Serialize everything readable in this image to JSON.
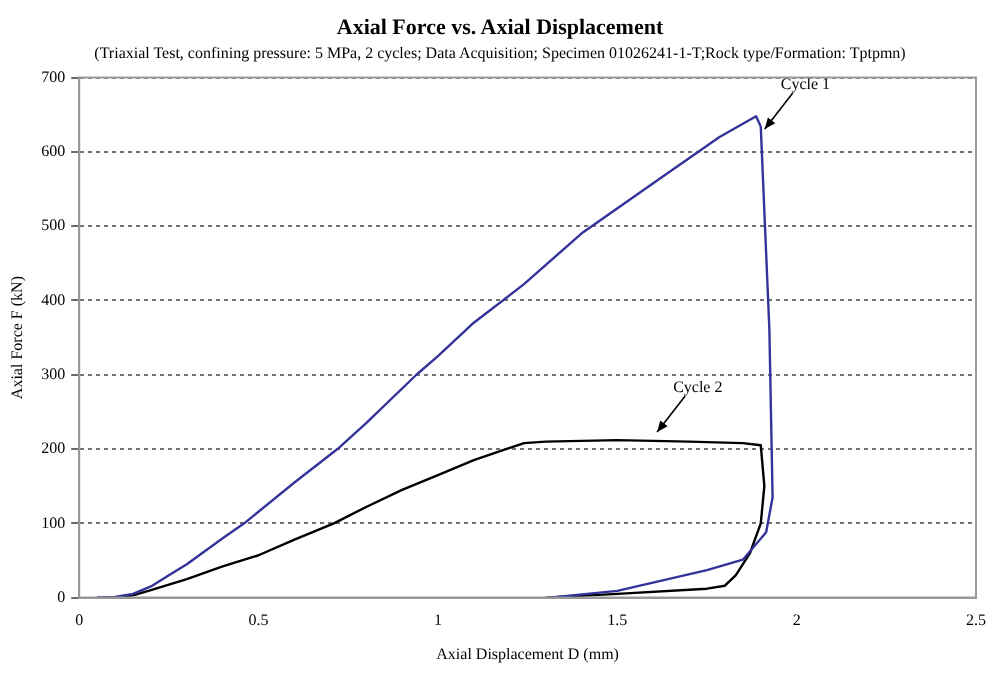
{
  "chart_data": {
    "type": "line",
    "title": "Axial Force vs. Axial Displacement",
    "subtitle": "(Triaxial Test, confining pressure: 5 MPa, 2 cycles; Data Acquisition; Specimen 01026241-1-T;Rock type/Formation: Tptpmn)",
    "xlabel": "Axial Displacement D (mm)",
    "ylabel": "Axial Force F (kN)",
    "series": [
      {
        "color": "#333399",
        "x": [
          0.05,
          0.1,
          0.15,
          0.2,
          0.25,
          0.3,
          0.4,
          0.46,
          0.6,
          0.72,
          0.8,
          0.94,
          1.0,
          1.1,
          1.24,
          1.4,
          1.63,
          1.785,
          1.887,
          1.9,
          1.924,
          1.933,
          1.915,
          1.85,
          1.75,
          1.5,
          1.31
        ],
        "values": [
          0,
          1,
          5,
          15,
          30,
          45,
          80,
          100,
          155,
          200,
          235,
          300,
          325,
          370,
          422,
          490,
          568,
          620,
          648,
          634,
          361,
          135,
          88,
          51,
          37,
          9,
          0
        ]
      },
      {
        "color": "#000000",
        "x": [
          0.05,
          0.1,
          0.15,
          0.2,
          0.3,
          0.4,
          0.5,
          0.6,
          0.71,
          0.8,
          0.9,
          1.0,
          1.1,
          1.24,
          1.3,
          1.5,
          1.7,
          1.85,
          1.9,
          1.91,
          1.9,
          1.87,
          1.83,
          1.8,
          1.75,
          1.5,
          1.3
        ],
        "values": [
          0,
          0,
          3,
          10,
          25,
          42,
          57,
          78,
          100,
          122,
          145,
          165,
          185,
          208,
          210,
          212,
          210,
          208,
          205,
          150,
          100,
          60,
          30,
          16,
          12,
          5,
          0
        ]
      }
    ],
    "xlim": [
      0,
      2.5
    ],
    "xticks": [
      0,
      0.5,
      1,
      1.5,
      2,
      2.5
    ],
    "ylim": [
      0,
      700
    ],
    "yticks": [
      0,
      100,
      200,
      300,
      400,
      500,
      600,
      700
    ],
    "grid": "y",
    "legend": false,
    "marker": "none",
    "line_style": "solid",
    "annotations": [
      {
        "text": "Cycle 1",
        "x": 1.9,
        "y": 620
      },
      {
        "text": "Cycle 2",
        "x": 1.6,
        "y": 212
      }
    ]
  }
}
